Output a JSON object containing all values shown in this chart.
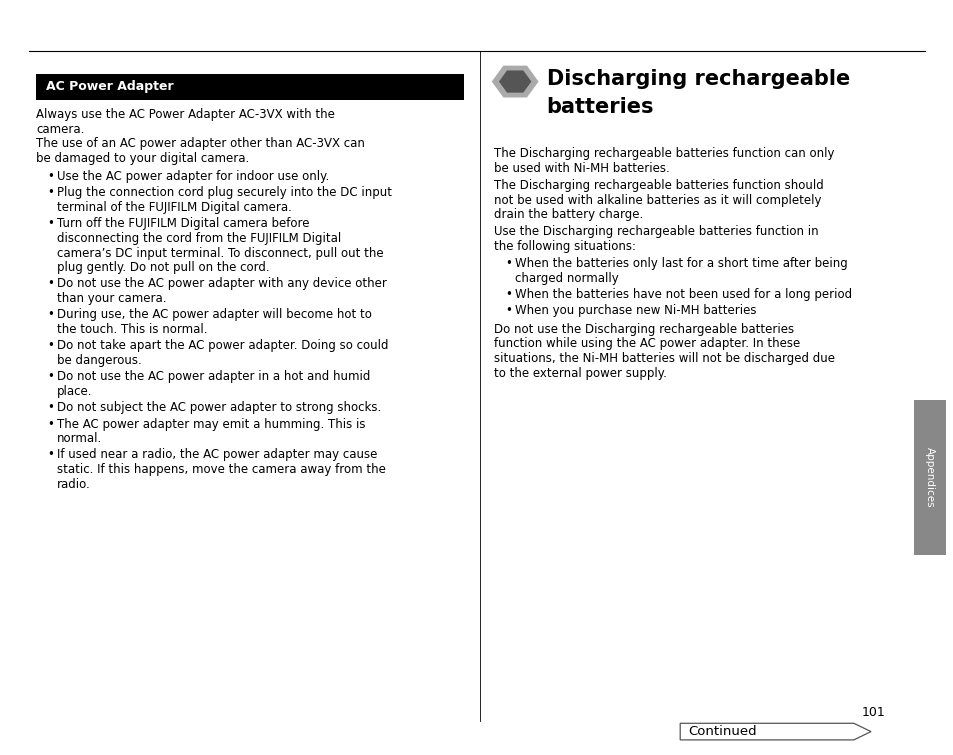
{
  "bg_color": "#ffffff",
  "page_width": 9.54,
  "page_height": 7.55,
  "header_box_color": "#000000",
  "header_box_text_color": "#ffffff",
  "header_box_label": "AC Power Adapter",
  "left_body_text": [
    "Always use the AC Power Adapter AC-3VX with the",
    "camera.",
    "The use of an AC power adapter other than AC-3VX can",
    "be damaged to your digital camera."
  ],
  "left_bullets": [
    [
      "Use the AC power adapter for indoor use only."
    ],
    [
      "Plug the connection cord plug securely into the DC input",
      "terminal of the FUJIFILM Digital camera."
    ],
    [
      "Turn off the FUJIFILM Digital camera before",
      "disconnecting the cord from the FUJIFILM Digital",
      "camera’s DC input terminal. To disconnect, pull out the",
      "plug gently. Do not pull on the cord."
    ],
    [
      "Do not use the AC power adapter with any device other",
      "than your camera."
    ],
    [
      "During use, the AC power adapter will become hot to",
      "the touch. This is normal."
    ],
    [
      "Do not take apart the AC power adapter. Doing so could",
      "be dangerous."
    ],
    [
      "Do not use the AC power adapter in a hot and humid",
      "place."
    ],
    [
      "Do not subject the AC power adapter to strong shocks."
    ],
    [
      "The AC power adapter may emit a humming. This is",
      "normal."
    ],
    [
      "If used near a radio, the AC power adapter may cause",
      "static. If this happens, move the camera away from the",
      "radio."
    ]
  ],
  "right_title_line1": "Discharging rechargeable",
  "right_title_line2": "batteries",
  "right_body_paragraphs": [
    [
      "The Discharging rechargeable batteries function can only",
      "be used with Ni-MH batteries."
    ],
    [
      "The Discharging rechargeable batteries function should",
      "not be used with alkaline batteries as it will completely",
      "drain the battery charge."
    ],
    [
      "Use the Discharging rechargeable batteries function in",
      "the following situations:"
    ]
  ],
  "right_bullets": [
    [
      "When the batteries only last for a short time after being",
      "charged normally"
    ],
    [
      "When the batteries have not been used for a long period"
    ],
    [
      "When you purchase new Ni-MH batteries"
    ]
  ],
  "right_closing_paragraph": [
    "Do not use the Discharging rechargeable batteries",
    "function while using the AC power adapter. In these",
    "situations, the Ni-MH batteries will not be discharged due",
    "to the external power supply."
  ],
  "page_number": "101",
  "continued_text": "Continued",
  "sidebar_color": "#888888",
  "sidebar_text": "Appendices",
  "hex_color_outer": "#aaaaaa",
  "hex_color_inner": "#555555",
  "fs_body": 8.5,
  "fs_header": 9.0,
  "fs_title": 15.0,
  "fs_page": 9.0,
  "fs_continued": 9.5,
  "fs_sidebar": 7.5
}
